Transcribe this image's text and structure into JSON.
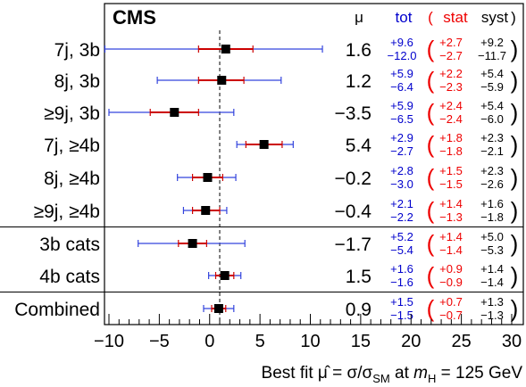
{
  "chart_data": {
    "type": "forest",
    "experiment": "CMS",
    "xlabel": "Best fit μ̂ = σ/σ_SM at m_H = 125 GeV",
    "xlim": [
      -10.5,
      30.5
    ],
    "xticks": [
      -10,
      -5,
      0,
      5,
      10,
      15,
      20,
      25,
      30
    ],
    "reference_line": 1,
    "header": {
      "mu": "μ",
      "tot": "tot",
      "open_paren": "(",
      "stat": "stat",
      "syst": "syst",
      "close_paren": ")"
    },
    "colors": {
      "tot": "#0000cc",
      "stat": "#ee0000",
      "syst": "#000000",
      "tot_bar": "#3344dd",
      "stat_bar": "#cc0000"
    },
    "groups": [
      [
        0,
        1,
        2,
        3,
        4,
        5
      ],
      [
        6,
        7
      ],
      [
        8
      ]
    ],
    "rows": [
      {
        "label": "7j, 3b",
        "mu": 1.6,
        "mu_text": "1.6",
        "tot_up": "+9.6",
        "tot_dn": "−12.0",
        "stat_up": "+2.7",
        "stat_dn": "−2.7",
        "syst_up": "+9.2",
        "syst_dn": "−11.7",
        "tot_lo": -10.4,
        "tot_hi": 11.2,
        "stat_lo": -1.1,
        "stat_hi": 4.3
      },
      {
        "label": "8j, 3b",
        "mu": 1.2,
        "mu_text": "1.2",
        "tot_up": "+5.9",
        "tot_dn": "−6.4",
        "stat_up": "+2.2",
        "stat_dn": "−2.3",
        "syst_up": "+5.4",
        "syst_dn": "−5.9",
        "tot_lo": -5.2,
        "tot_hi": 7.1,
        "stat_lo": -1.1,
        "stat_hi": 3.4
      },
      {
        "label": "≥9j, 3b",
        "mu": -3.5,
        "mu_text": "−3.5",
        "tot_up": "+5.9",
        "tot_dn": "−6.5",
        "stat_up": "+2.4",
        "stat_dn": "−2.4",
        "syst_up": "+5.4",
        "syst_dn": "−6.0",
        "tot_lo": -10.0,
        "tot_hi": 2.4,
        "stat_lo": -5.9,
        "stat_hi": -1.1
      },
      {
        "label": "7j, ≥4b",
        "mu": 5.4,
        "mu_text": "5.4",
        "tot_up": "+2.9",
        "tot_dn": "−2.7",
        "stat_up": "+1.8",
        "stat_dn": "−1.8",
        "syst_up": "+2.3",
        "syst_dn": "−2.1",
        "tot_lo": 2.7,
        "tot_hi": 8.3,
        "stat_lo": 3.6,
        "stat_hi": 7.2
      },
      {
        "label": "8j, ≥4b",
        "mu": -0.2,
        "mu_text": "−0.2",
        "tot_up": "+2.8",
        "tot_dn": "−3.0",
        "stat_up": "+1.5",
        "stat_dn": "−1.5",
        "syst_up": "+2.3",
        "syst_dn": "−2.6",
        "tot_lo": -3.2,
        "tot_hi": 2.6,
        "stat_lo": -1.7,
        "stat_hi": 1.3
      },
      {
        "label": "≥9j, ≥4b",
        "mu": -0.4,
        "mu_text": "−0.4",
        "tot_up": "+2.1",
        "tot_dn": "−2.2",
        "stat_up": "+1.4",
        "stat_dn": "−1.3",
        "syst_up": "+1.6",
        "syst_dn": "−1.8",
        "tot_lo": -2.6,
        "tot_hi": 1.7,
        "stat_lo": -1.7,
        "stat_hi": 1.0
      },
      {
        "label": "3b cats",
        "mu": -1.7,
        "mu_text": "−1.7",
        "tot_up": "+5.2",
        "tot_dn": "−5.4",
        "stat_up": "+1.4",
        "stat_dn": "−1.4",
        "syst_up": "+5.0",
        "syst_dn": "−5.3",
        "tot_lo": -7.1,
        "tot_hi": 3.5,
        "stat_lo": -3.1,
        "stat_hi": -0.3
      },
      {
        "label": "4b cats",
        "mu": 1.5,
        "mu_text": "1.5",
        "tot_up": "+1.6",
        "tot_dn": "−1.6",
        "stat_up": "+0.9",
        "stat_dn": "−0.9",
        "syst_up": "+1.4",
        "syst_dn": "−1.4",
        "tot_lo": -0.1,
        "tot_hi": 3.1,
        "stat_lo": 0.6,
        "stat_hi": 2.4
      },
      {
        "label": "Combined",
        "mu": 0.9,
        "mu_text": "0.9",
        "tot_up": "+1.5",
        "tot_dn": "−1.5",
        "stat_up": "+0.7",
        "stat_dn": "−0.7",
        "syst_up": "+1.3",
        "syst_dn": "−1.3",
        "tot_lo": -0.6,
        "tot_hi": 2.4,
        "stat_lo": 0.2,
        "stat_hi": 1.6
      }
    ]
  }
}
